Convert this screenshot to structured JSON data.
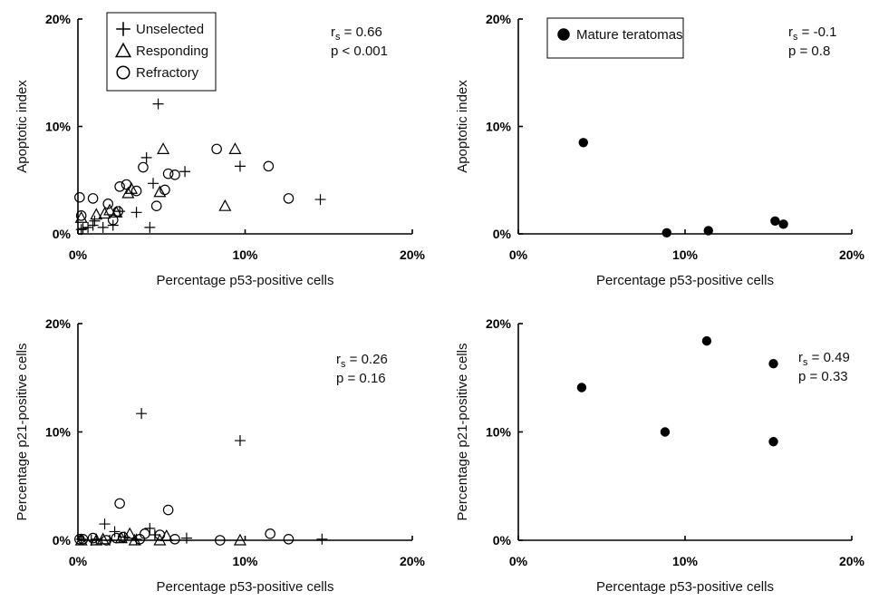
{
  "chart_data": [
    {
      "type": "scatter",
      "title": "",
      "xlabel": "Percentage p53-positive cells",
      "ylabel": "Apoptotic index",
      "xlim": [
        0,
        20
      ],
      "ylim": [
        0,
        20
      ],
      "xticks": [
        "0%",
        "10%",
        "20%"
      ],
      "yticks": [
        "0%",
        "10%",
        "20%"
      ],
      "legend": {
        "position": "top-left"
      },
      "annotation": {
        "rs_label": "r",
        "rs_subscript": "s",
        "rs_value": " = 0.66",
        "p_text": "p < 0.001"
      },
      "series": [
        {
          "name": "Unselected",
          "marker": "plus",
          "points": [
            [
              0.2,
              0.4
            ],
            [
              0.3,
              0.5
            ],
            [
              0.6,
              0.6
            ],
            [
              0.9,
              0.8
            ],
            [
              1.0,
              1.2
            ],
            [
              1.5,
              0.6
            ],
            [
              2.1,
              0.8
            ],
            [
              2.5,
              2.1
            ],
            [
              3.5,
              2.0
            ],
            [
              4.3,
              0.6
            ],
            [
              4.5,
              4.7
            ],
            [
              4.1,
              7.1
            ],
            [
              4.8,
              12.1
            ],
            [
              6.4,
              5.8
            ],
            [
              9.7,
              6.3
            ],
            [
              14.5,
              3.2
            ]
          ]
        },
        {
          "name": "Responding",
          "marker": "triangle",
          "points": [
            [
              0.2,
              1.5
            ],
            [
              1.1,
              1.8
            ],
            [
              1.6,
              1.9
            ],
            [
              1.9,
              2.2
            ],
            [
              2.3,
              2.0
            ],
            [
              3.0,
              3.8
            ],
            [
              3.2,
              4.2
            ],
            [
              4.9,
              3.9
            ],
            [
              5.1,
              7.9
            ],
            [
              9.4,
              7.9
            ],
            [
              8.8,
              2.6
            ]
          ]
        },
        {
          "name": "Refractory",
          "marker": "circle",
          "points": [
            [
              0.1,
              3.4
            ],
            [
              0.2,
              1.7
            ],
            [
              0.9,
              3.3
            ],
            [
              1.8,
              2.8
            ],
            [
              2.1,
              1.3
            ],
            [
              2.4,
              2.1
            ],
            [
              2.5,
              4.4
            ],
            [
              2.9,
              4.6
            ],
            [
              3.5,
              4.0
            ],
            [
              3.9,
              6.2
            ],
            [
              4.7,
              2.6
            ],
            [
              5.2,
              4.1
            ],
            [
              5.4,
              5.6
            ],
            [
              5.8,
              5.5
            ],
            [
              8.3,
              7.9
            ],
            [
              11.4,
              6.3
            ],
            [
              12.6,
              3.3
            ]
          ]
        }
      ]
    },
    {
      "type": "scatter",
      "title": "",
      "xlabel": "Percentage p53-positive cells",
      "ylabel": "Apoptotic index",
      "xlim": [
        0,
        20
      ],
      "ylim": [
        0,
        20
      ],
      "xticks": [
        "0%",
        "10%",
        "20%"
      ],
      "yticks": [
        "0%",
        "10%",
        "20%"
      ],
      "legend": {
        "position": "top-left"
      },
      "annotation": {
        "rs_label": "r",
        "rs_subscript": "s",
        "rs_value": " = -0.1",
        "p_text": "p = 0.8"
      },
      "series": [
        {
          "name": "Mature teratomas",
          "marker": "dot",
          "points": [
            [
              3.9,
              8.5
            ],
            [
              8.9,
              0.1
            ],
            [
              11.4,
              0.3
            ],
            [
              15.4,
              1.2
            ],
            [
              15.9,
              0.9
            ]
          ]
        }
      ]
    },
    {
      "type": "scatter",
      "title": "",
      "xlabel": "Percentage p53-positive cells",
      "ylabel": "Percentage p21-positive cells",
      "xlim": [
        0,
        20
      ],
      "ylim": [
        0,
        20
      ],
      "xticks": [
        "0%",
        "10%",
        "20%"
      ],
      "yticks": [
        "0%",
        "10%",
        "20%"
      ],
      "annotation": {
        "rs_label": "r",
        "rs_subscript": "s",
        "rs_value": " = 0.26",
        "p_text": "p = 0.16"
      },
      "series": [
        {
          "name": "Unselected",
          "marker": "plus",
          "points": [
            [
              0.2,
              0.1
            ],
            [
              0.8,
              0.0
            ],
            [
              1.1,
              0.1
            ],
            [
              1.6,
              1.5
            ],
            [
              1.9,
              0.0
            ],
            [
              2.2,
              0.8
            ],
            [
              2.8,
              0.3
            ],
            [
              3.5,
              0.1
            ],
            [
              3.8,
              11.7
            ],
            [
              4.3,
              1.1
            ],
            [
              4.6,
              0.5
            ],
            [
              6.5,
              0.2
            ],
            [
              9.7,
              9.2
            ],
            [
              14.6,
              0.1
            ]
          ]
        },
        {
          "name": "Responding",
          "marker": "triangle",
          "points": [
            [
              0.2,
              0.0
            ],
            [
              1.1,
              0.0
            ],
            [
              1.5,
              0.1
            ],
            [
              2.6,
              0.2
            ],
            [
              3.1,
              0.6
            ],
            [
              3.4,
              0.0
            ],
            [
              4.9,
              0.0
            ],
            [
              5.3,
              0.4
            ],
            [
              9.7,
              0.0
            ]
          ]
        },
        {
          "name": "Refractory",
          "marker": "circle",
          "points": [
            [
              0.1,
              0.1
            ],
            [
              0.3,
              0.1
            ],
            [
              0.9,
              0.2
            ],
            [
              1.7,
              0.0
            ],
            [
              2.3,
              0.2
            ],
            [
              2.5,
              3.4
            ],
            [
              2.7,
              0.3
            ],
            [
              3.7,
              0.1
            ],
            [
              4.0,
              0.6
            ],
            [
              4.9,
              0.5
            ],
            [
              5.4,
              2.8
            ],
            [
              5.8,
              0.1
            ],
            [
              8.5,
              0.0
            ],
            [
              11.5,
              0.6
            ],
            [
              12.6,
              0.1
            ]
          ]
        }
      ]
    },
    {
      "type": "scatter",
      "title": "",
      "xlabel": "Percentage p53-positive cells",
      "ylabel": "Percentage p21-positive cells",
      "xlim": [
        0,
        20
      ],
      "ylim": [
        0,
        20
      ],
      "xticks": [
        "0%",
        "10%",
        "20%"
      ],
      "yticks": [
        "0%",
        "10%",
        "20%"
      ],
      "annotation": {
        "rs_label": "r",
        "rs_subscript": "s",
        "rs_value": " = 0.49",
        "p_text": "p = 0.33"
      },
      "series": [
        {
          "name": "Mature teratomas",
          "marker": "dot",
          "points": [
            [
              3.8,
              14.1
            ],
            [
              8.8,
              10.0
            ],
            [
              11.3,
              18.4
            ],
            [
              15.3,
              16.3
            ],
            [
              15.3,
              9.1
            ]
          ]
        }
      ]
    }
  ]
}
